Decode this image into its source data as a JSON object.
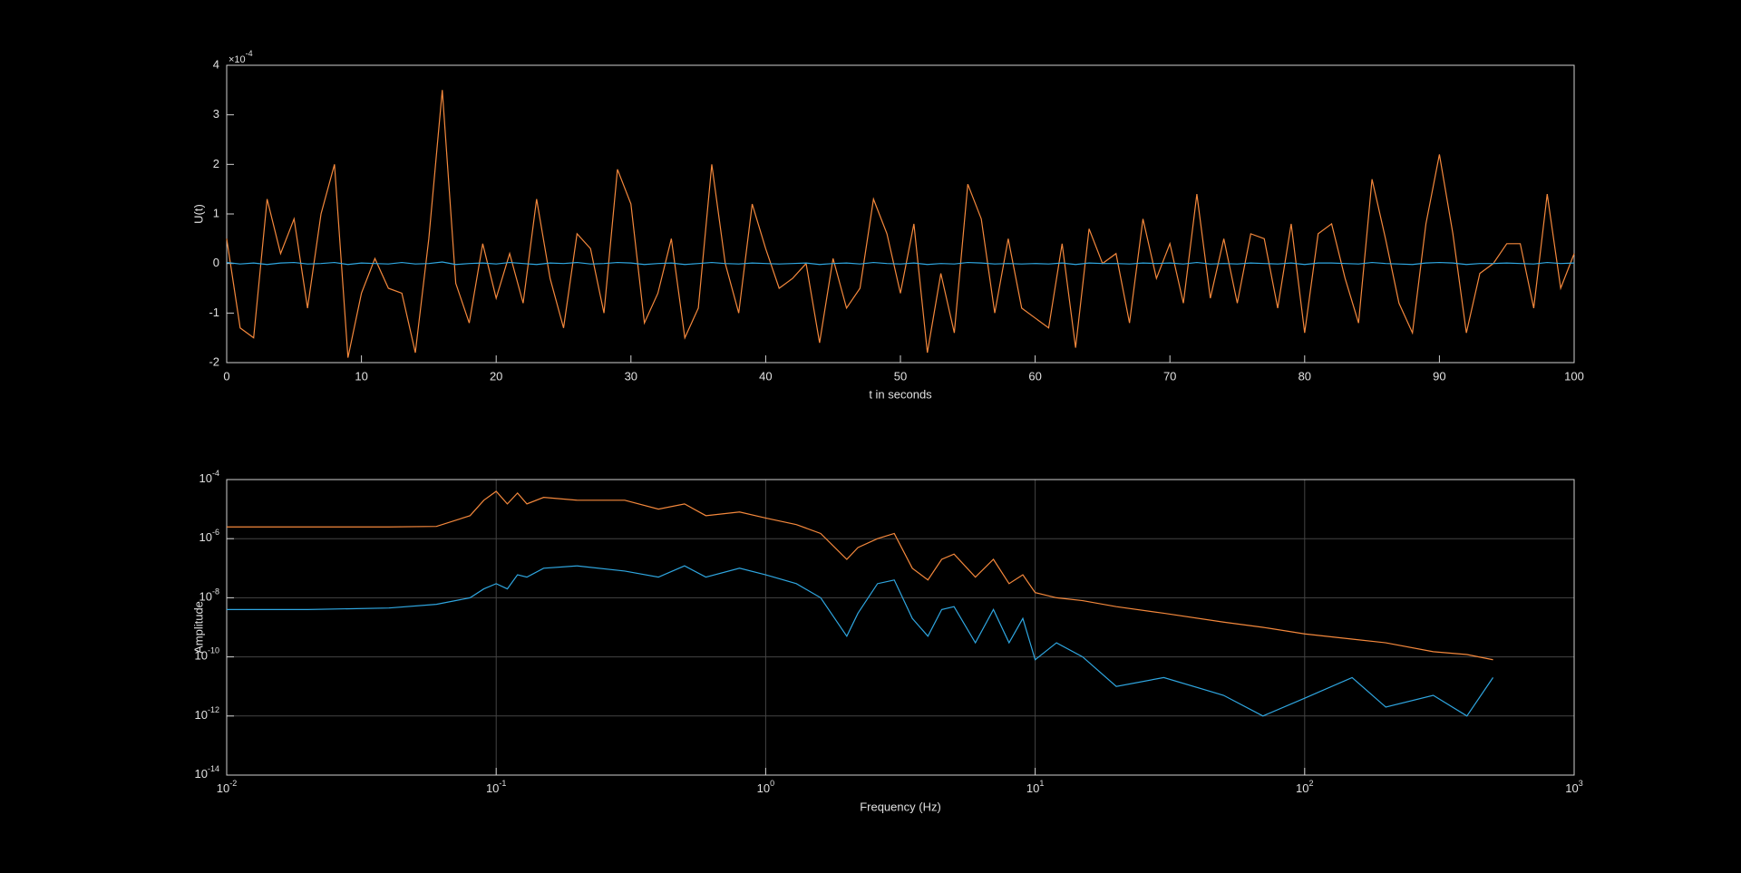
{
  "chart_data": [
    {
      "type": "line",
      "xlabel": "t in seconds",
      "ylabel": "U(t)",
      "y_multiplier": "×10^-4",
      "x": [
        0,
        1,
        2,
        3,
        4,
        5,
        6,
        7,
        8,
        9,
        10,
        11,
        12,
        13,
        14,
        15,
        16,
        17,
        18,
        19,
        20,
        21,
        22,
        23,
        24,
        25,
        26,
        27,
        28,
        29,
        30,
        31,
        32,
        33,
        34,
        35,
        36,
        37,
        38,
        39,
        40,
        41,
        42,
        43,
        44,
        45,
        46,
        47,
        48,
        49,
        50,
        51,
        52,
        53,
        54,
        55,
        56,
        57,
        58,
        59,
        60,
        61,
        62,
        63,
        64,
        65,
        66,
        67,
        68,
        69,
        70,
        71,
        72,
        73,
        74,
        75,
        76,
        77,
        78,
        79,
        80,
        81,
        82,
        83,
        84,
        85,
        86,
        87,
        88,
        89,
        90,
        91,
        92,
        93,
        94,
        95,
        96,
        97,
        98,
        99,
        100
      ],
      "series": [
        {
          "color": "#f4883c",
          "values": [
            0.5,
            -1.3,
            -1.5,
            1.3,
            0.2,
            0.9,
            -0.9,
            1.0,
            2.0,
            -1.9,
            -0.6,
            0.1,
            -0.5,
            -0.6,
            -1.8,
            0.5,
            3.5,
            -0.4,
            -1.2,
            0.4,
            -0.7,
            0.2,
            -0.8,
            1.3,
            -0.3,
            -1.3,
            0.6,
            0.3,
            -1.0,
            1.9,
            1.2,
            -1.2,
            -0.6,
            0.5,
            -1.5,
            -0.9,
            2.0,
            0.0,
            -1.0,
            1.2,
            0.3,
            -0.5,
            -0.3,
            0.0,
            -1.6,
            0.1,
            -0.9,
            -0.5,
            1.3,
            0.6,
            -0.6,
            0.8,
            -1.8,
            -0.2,
            -1.4,
            1.6,
            0.9,
            -1.0,
            0.5,
            -0.9,
            -1.1,
            -1.3,
            0.4,
            -1.7,
            0.7,
            0.0,
            0.2,
            -1.2,
            0.9,
            -0.3,
            0.4,
            -0.8,
            1.4,
            -0.7,
            0.5,
            -0.8,
            0.6,
            0.5,
            -0.9,
            0.8,
            -1.4,
            0.6,
            0.8,
            -0.3,
            -1.2,
            1.7,
            0.5,
            -0.8,
            -1.4,
            0.8,
            2.2,
            0.6,
            -1.4,
            -0.2,
            0.0,
            0.4,
            0.4,
            -0.9,
            1.4,
            -0.5,
            0.2
          ]
        },
        {
          "color": "#2fa6e0",
          "values": [
            0.02,
            -0.01,
            0.01,
            -0.02,
            0.01,
            0.02,
            -0.01,
            0.0,
            0.02,
            -0.02,
            0.01,
            0.0,
            -0.01,
            0.02,
            -0.01,
            0.0,
            0.03,
            -0.02,
            0.0,
            0.01,
            -0.01,
            0.02,
            0.0,
            -0.02,
            0.01,
            0.0,
            0.02,
            -0.01,
            0.0,
            0.02,
            0.01,
            -0.02,
            0.0,
            0.01,
            -0.02,
            0.0,
            0.02,
            0.0,
            -0.01,
            0.01,
            0.0,
            -0.01,
            0.0,
            0.01,
            -0.02,
            0.0,
            0.01,
            -0.01,
            0.02,
            0.0,
            -0.01,
            0.01,
            -0.02,
            0.0,
            -0.01,
            0.02,
            0.01,
            -0.01,
            0.0,
            -0.01,
            0.0,
            -0.01,
            0.01,
            -0.02,
            0.01,
            0.0,
            0.0,
            -0.01,
            0.01,
            0.0,
            0.01,
            -0.01,
            0.02,
            -0.01,
            0.0,
            -0.01,
            0.01,
            0.0,
            -0.01,
            0.01,
            -0.02,
            0.01,
            0.01,
            0.0,
            -0.01,
            0.02,
            0.0,
            -0.01,
            -0.02,
            0.01,
            0.02,
            0.01,
            -0.02,
            0.0,
            0.0,
            0.01,
            0.0,
            -0.01,
            0.02,
            0.0,
            0.01
          ]
        }
      ],
      "xlim": [
        0,
        100
      ],
      "xticks": [
        0,
        10,
        20,
        30,
        40,
        50,
        60,
        70,
        80,
        90,
        100
      ],
      "ylim": [
        -2,
        4
      ],
      "yticks": [
        -2,
        -1,
        0,
        1,
        2,
        3,
        4
      ],
      "grid": false
    },
    {
      "type": "line",
      "xlabel": "Frequency (Hz)",
      "ylabel": "Amplitude",
      "xscale": "log",
      "yscale": "log",
      "x": [
        0.01,
        0.02,
        0.04,
        0.06,
        0.08,
        0.09,
        0.1,
        0.11,
        0.12,
        0.13,
        0.15,
        0.2,
        0.3,
        0.4,
        0.5,
        0.6,
        0.8,
        1,
        1.3,
        1.6,
        2,
        2.2,
        2.6,
        3,
        3.5,
        4,
        4.5,
        5,
        6,
        7,
        8,
        9,
        10,
        12,
        15,
        20,
        30,
        50,
        70,
        100,
        150,
        200,
        300,
        400,
        500
      ],
      "series": [
        {
          "color": "#f4883c",
          "values": [
            2.5e-06,
            2.5e-06,
            2.5e-06,
            2.6e-06,
            6e-06,
            2e-05,
            4e-05,
            1.5e-05,
            3.5e-05,
            1.5e-05,
            2.5e-05,
            2e-05,
            2e-05,
            1e-05,
            1.5e-05,
            6e-06,
            8e-06,
            5e-06,
            3e-06,
            1.5e-06,
            2e-07,
            5e-07,
            1e-06,
            1.5e-06,
            1e-07,
            4e-08,
            2e-07,
            3e-07,
            5e-08,
            2e-07,
            3e-08,
            6e-08,
            1.5e-08,
            1e-08,
            8e-09,
            5e-09,
            3e-09,
            1.5e-09,
            1e-09,
            6e-10,
            4e-10,
            3e-10,
            1.5e-10,
            1.2e-10,
            8e-11
          ]
        },
        {
          "color": "#2fa6e0",
          "values": [
            4e-09,
            4e-09,
            4.5e-09,
            6e-09,
            1e-08,
            2e-08,
            3e-08,
            2e-08,
            6e-08,
            5e-08,
            1e-07,
            1.2e-07,
            8e-08,
            5e-08,
            1.2e-07,
            5e-08,
            1e-07,
            6e-08,
            3e-08,
            1e-08,
            5e-10,
            3e-09,
            3e-08,
            4e-08,
            2e-09,
            5e-10,
            4e-09,
            5e-09,
            3e-10,
            4e-09,
            3e-10,
            2e-09,
            8e-11,
            3e-10,
            1e-10,
            1e-11,
            2e-11,
            5e-12,
            1e-12,
            4e-12,
            2e-11,
            2e-12,
            5e-12,
            1e-12,
            2e-11
          ]
        }
      ],
      "xlim": [
        0.01,
        1000
      ],
      "xticks": [
        {
          "value": 0.01,
          "label": "10^-2"
        },
        {
          "value": 0.1,
          "label": "10^-1"
        },
        {
          "value": 1,
          "label": "10^0"
        },
        {
          "value": 10,
          "label": "10^1"
        },
        {
          "value": 100,
          "label": "10^2"
        },
        {
          "value": 1000,
          "label": "10^3"
        }
      ],
      "ylim": [
        1e-14,
        0.0001
      ],
      "yticks": [
        {
          "value": 1e-14,
          "label": "10^-14"
        },
        {
          "value": 1e-12,
          "label": "10^-12"
        },
        {
          "value": 1e-10,
          "label": "10^-10"
        },
        {
          "value": 1e-08,
          "label": "10^-8"
        },
        {
          "value": 1e-06,
          "label": "10^-6"
        },
        {
          "value": 0.0001,
          "label": "10^-4"
        }
      ],
      "grid": true
    }
  ]
}
